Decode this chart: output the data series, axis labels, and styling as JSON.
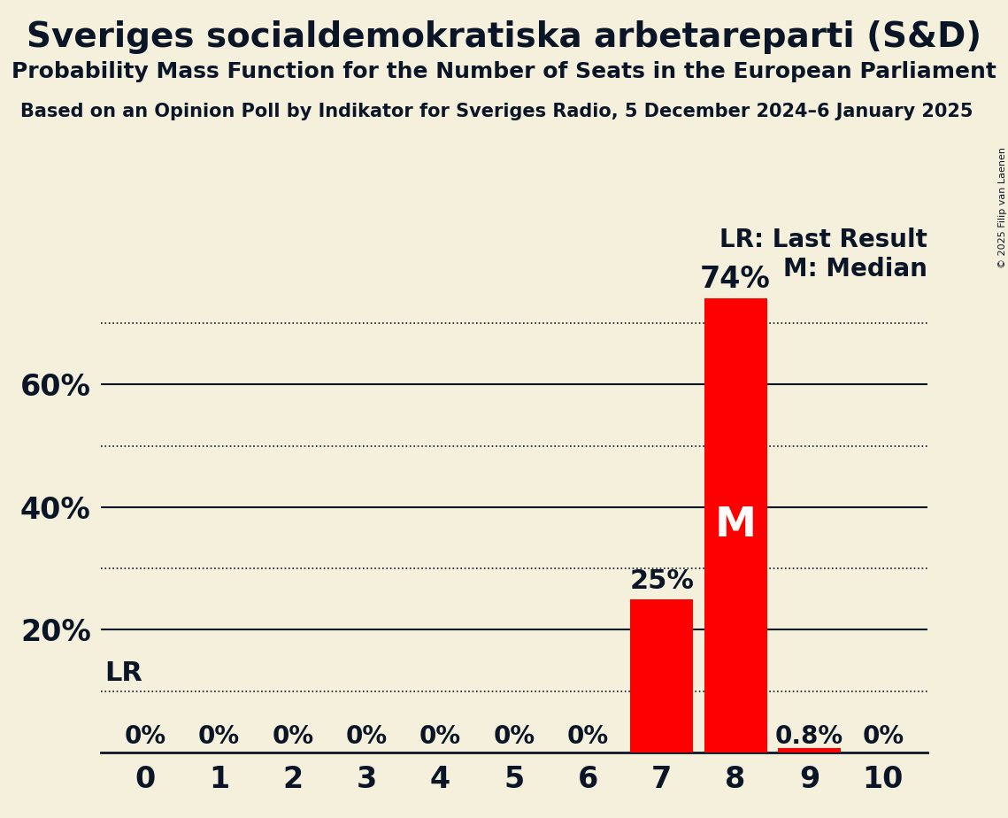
{
  "title": "Sveriges socialdemokratiska arbetareparti (S&D)",
  "subtitle": "Probability Mass Function for the Number of Seats in the European Parliament",
  "source": "Based on an Opinion Poll by Indikator for Sveriges Radio, 5 December 2024–6 January 2025",
  "copyright": "© 2025 Filip van Laenen",
  "seats": [
    0,
    1,
    2,
    3,
    4,
    5,
    6,
    7,
    8,
    9,
    10
  ],
  "probabilities": [
    0.0,
    0.0,
    0.0,
    0.0,
    0.0,
    0.0,
    0.0,
    0.25,
    0.74,
    0.008,
    0.0
  ],
  "bar_color": "#FF0000",
  "background_color": "#F5F0DC",
  "text_color": "#0A1628",
  "lr_line_value": 0.1,
  "lr_label": "LR",
  "median_seat": 8,
  "median_label": "M",
  "legend_lr": "LR: Last Result",
  "legend_m": "M: Median",
  "bar_labels": [
    "0%",
    "0%",
    "0%",
    "0%",
    "0%",
    "0%",
    "0%",
    "25%",
    "74%",
    "0.8%",
    "0%"
  ],
  "ylim": [
    0,
    0.8
  ],
  "ytick_vals": [
    0.1,
    0.2,
    0.3,
    0.4,
    0.5,
    0.6,
    0.7
  ],
  "ytick_labels": [
    "",
    "20%",
    "",
    "40%",
    "",
    "60%",
    ""
  ],
  "grid_dotted": [
    true,
    false,
    true,
    false,
    true,
    false,
    true
  ]
}
